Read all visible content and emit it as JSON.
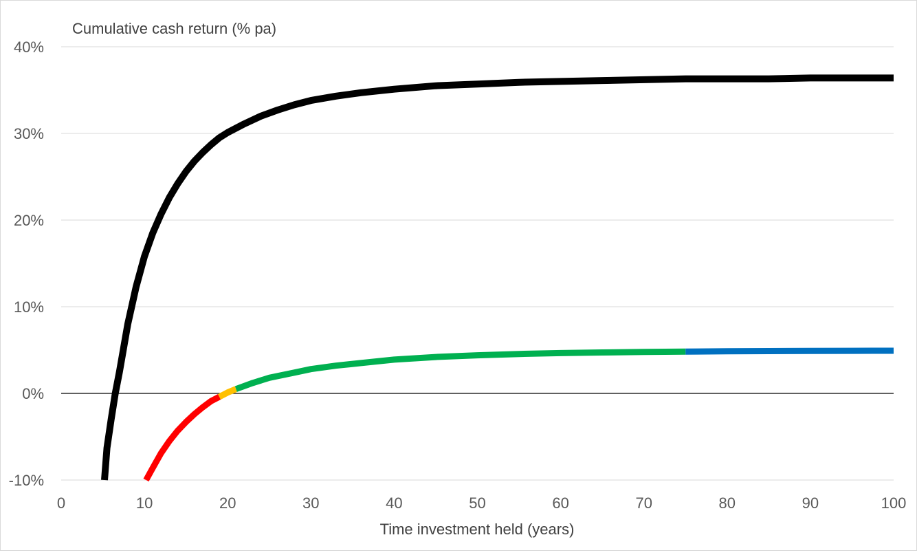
{
  "chart_data": {
    "type": "line",
    "title": "",
    "ylabel": "Cumulative cash return (% pa)",
    "xlabel": "Time investment held (years)",
    "xlim": [
      0,
      100
    ],
    "ylim": [
      -10,
      40
    ],
    "x_ticks": [
      0,
      10,
      20,
      30,
      40,
      50,
      60,
      70,
      80,
      90,
      100
    ],
    "x_tick_labels": [
      "0",
      "10",
      "20",
      "30",
      "40",
      "50",
      "60",
      "70",
      "80",
      "90",
      "100"
    ],
    "y_ticks": [
      -10,
      0,
      10,
      20,
      30,
      40
    ],
    "y_tick_labels": [
      "-10%",
      "0%",
      "10%",
      "20%",
      "30%",
      "40%"
    ],
    "grid": "horizontal",
    "legend": "none",
    "colors": {
      "grid": "#d9d9d9",
      "zero_line": "#000000",
      "black": "#000000",
      "red": "#ff0000",
      "yellow": "#ffc000",
      "green": "#00b050",
      "blue": "#0070c0"
    },
    "series": [
      {
        "color": "#000000",
        "x": [
          5.2,
          5.5,
          6,
          6.5,
          7,
          8,
          9,
          10,
          11,
          12,
          13,
          14,
          15,
          16,
          17,
          18,
          19,
          20,
          22,
          24,
          26,
          28,
          30,
          33,
          36,
          40,
          45,
          50,
          55,
          60,
          65,
          70,
          75,
          80,
          85,
          90,
          95,
          100
        ],
        "y": [
          -10,
          -6.3,
          -3,
          0,
          2.5,
          8,
          12.3,
          15.8,
          18.5,
          20.7,
          22.6,
          24.2,
          25.6,
          26.8,
          27.8,
          28.7,
          29.5,
          30.1,
          31.1,
          32.0,
          32.7,
          33.3,
          33.8,
          34.3,
          34.7,
          35.1,
          35.5,
          35.7,
          35.9,
          36.0,
          36.1,
          36.2,
          36.3,
          36.3,
          36.3,
          36.4,
          36.4,
          36.4
        ]
      },
      {
        "color": "#ff0000",
        "x": [
          10.2,
          11,
          12,
          13,
          14,
          15,
          16,
          17,
          18,
          19
        ],
        "y": [
          -10,
          -8.6,
          -6.9,
          -5.5,
          -4.3,
          -3.3,
          -2.4,
          -1.6,
          -0.9,
          -0.4
        ]
      },
      {
        "color": "#ffc000",
        "x": [
          19,
          20,
          21
        ],
        "y": [
          -0.4,
          0.1,
          0.5
        ]
      },
      {
        "color": "#00b050",
        "x": [
          21,
          23,
          25,
          28,
          30,
          33,
          36,
          40,
          45,
          50,
          55,
          60,
          65,
          70,
          75
        ],
        "y": [
          0.5,
          1.2,
          1.8,
          2.4,
          2.8,
          3.2,
          3.5,
          3.9,
          4.2,
          4.4,
          4.55,
          4.65,
          4.72,
          4.78,
          4.82
        ]
      },
      {
        "color": "#0070c0",
        "x": [
          75,
          80,
          85,
          90,
          95,
          100
        ],
        "y": [
          4.82,
          4.86,
          4.88,
          4.9,
          4.91,
          4.92
        ]
      }
    ]
  }
}
